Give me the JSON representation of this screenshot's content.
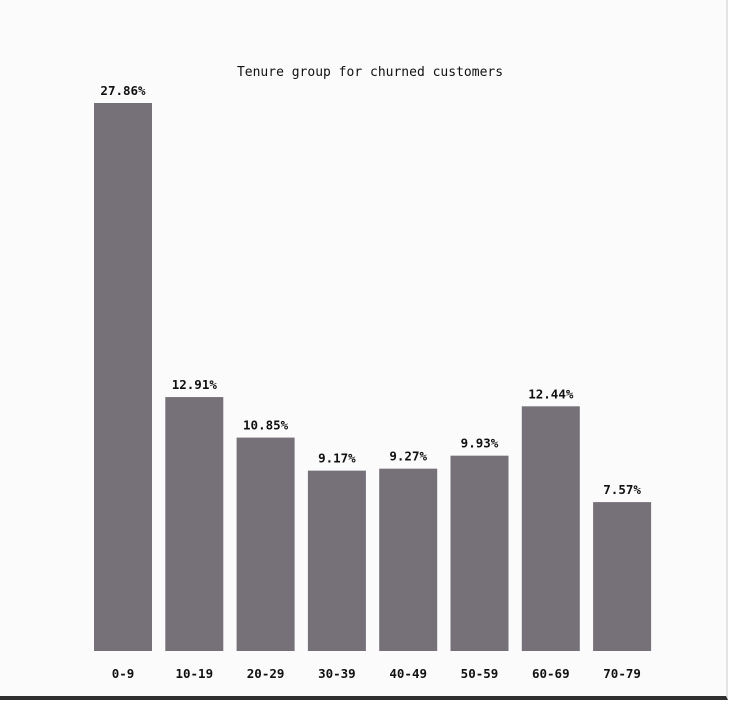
{
  "chart_data": {
    "type": "bar",
    "title": "Tenure group for churned customers",
    "xlabel": "",
    "ylabel": "",
    "categories": [
      "0-9",
      "10-19",
      "20-29",
      "30-39",
      "40-49",
      "50-59",
      "60-69",
      "70-79"
    ],
    "values": [
      27.86,
      12.91,
      10.85,
      9.17,
      9.27,
      9.93,
      12.44,
      7.57
    ],
    "data_labels": [
      "27.86%",
      "12.91%",
      "10.85%",
      "9.17%",
      "9.27%",
      "9.93%",
      "12.44%",
      "7.57%"
    ],
    "ylim": [
      0,
      27.86
    ],
    "grid": false,
    "legend": "none",
    "bar_color": "#767178"
  }
}
